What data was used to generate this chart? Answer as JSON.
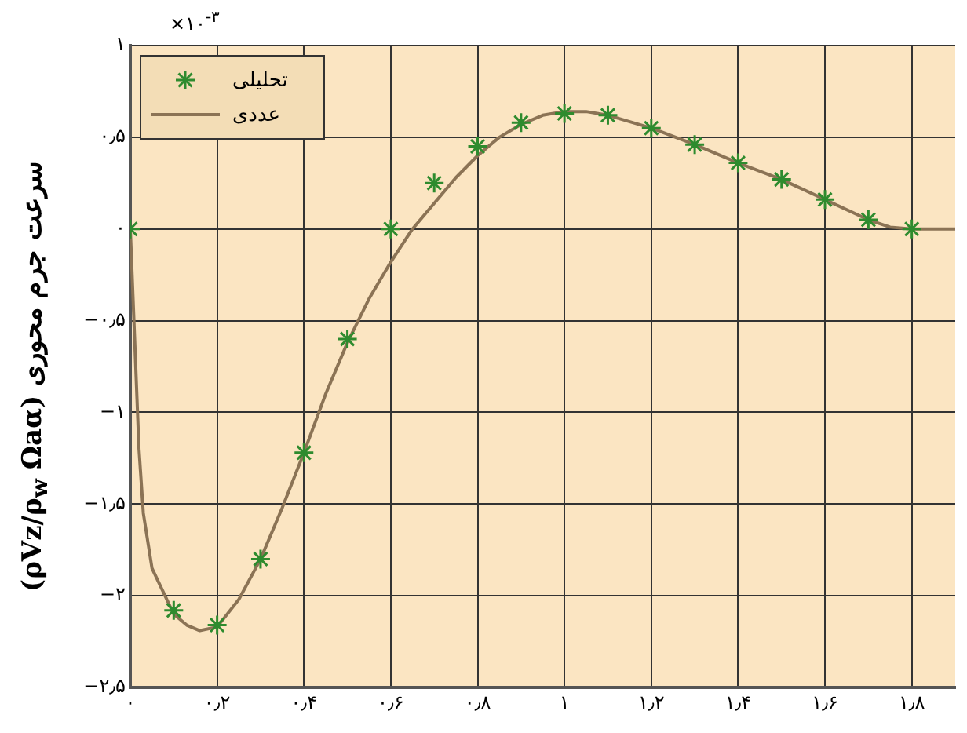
{
  "chart_data": {
    "type": "line",
    "ylabel": "(ρVz/ρ$_{w}$ Ωaα) سرعت جرم محوری",
    "annotations": [
      "×۱۰$^{-۳}$"
    ],
    "xlim": [
      0,
      1.9
    ],
    "xticks": [
      {
        "value": 0,
        "label": "۰"
      },
      {
        "value": 0.2,
        "label": "۰٫۲"
      },
      {
        "value": 0.4,
        "label": "۰٫۴"
      },
      {
        "value": 0.6,
        "label": "۰٫۶"
      },
      {
        "value": 0.8,
        "label": "۰٫۸"
      },
      {
        "value": 1,
        "label": "۱"
      },
      {
        "value": 1.2,
        "label": "۱٫۲"
      },
      {
        "value": 1.4,
        "label": "۱٫۴"
      },
      {
        "value": 1.6,
        "label": "۱٫۶"
      },
      {
        "value": 1.8,
        "label": "۱٫۸"
      }
    ],
    "ylim": [
      -2.5,
      1
    ],
    "yticks": [
      {
        "value": -2.5,
        "label": "−۲٫۵"
      },
      {
        "value": -2,
        "label": "−۲"
      },
      {
        "value": -1.5,
        "label": "−۱٫۵"
      },
      {
        "value": -1,
        "label": "−۱"
      },
      {
        "value": -0.5,
        "label": "−۰٫۵"
      },
      {
        "value": 0,
        "label": "۰"
      },
      {
        "value": 0.5,
        "label": "۰٫۵"
      },
      {
        "value": 1,
        "label": "۱"
      }
    ],
    "grid": true,
    "legend": "top left",
    "series": [
      {
        "name": "تحلیلی",
        "type": "scatter",
        "marker": "cross",
        "color": "#2e8b2e",
        "x": [
          0,
          0.1,
          0.2,
          0.3,
          0.4,
          0.5,
          0.6,
          0.7,
          0.8,
          0.9,
          1.0,
          1.1,
          1.2,
          1.3,
          1.4,
          1.5,
          1.6,
          1.7,
          1.8
        ],
        "values": [
          0,
          -2.08,
          -2.16,
          -1.8,
          -1.22,
          -0.6,
          0,
          0.25,
          0.45,
          0.58,
          0.63,
          0.62,
          0.55,
          0.46,
          0.36,
          0.27,
          0.16,
          0.05,
          0
        ]
      },
      {
        "name": "عددی",
        "type": "line",
        "marker": "none",
        "color": "#8b7355",
        "x": [
          0,
          0.01,
          0.02,
          0.03,
          0.05,
          0.08,
          0.1,
          0.13,
          0.16,
          0.2,
          0.25,
          0.3,
          0.35,
          0.4,
          0.45,
          0.5,
          0.55,
          0.6,
          0.65,
          0.7,
          0.75,
          0.8,
          0.85,
          0.9,
          0.95,
          1.0,
          1.05,
          1.1,
          1.2,
          1.3,
          1.4,
          1.5,
          1.6,
          1.7,
          1.75,
          1.8,
          1.9
        ],
        "values": [
          0,
          -0.6,
          -1.2,
          -1.55,
          -1.85,
          -2.0,
          -2.1,
          -2.16,
          -2.19,
          -2.17,
          -2.02,
          -1.8,
          -1.52,
          -1.22,
          -0.9,
          -0.62,
          -0.38,
          -0.18,
          0,
          0.14,
          0.28,
          0.4,
          0.5,
          0.57,
          0.62,
          0.64,
          0.64,
          0.62,
          0.55,
          0.46,
          0.36,
          0.27,
          0.16,
          0.05,
          0.01,
          0,
          0
        ]
      }
    ]
  }
}
